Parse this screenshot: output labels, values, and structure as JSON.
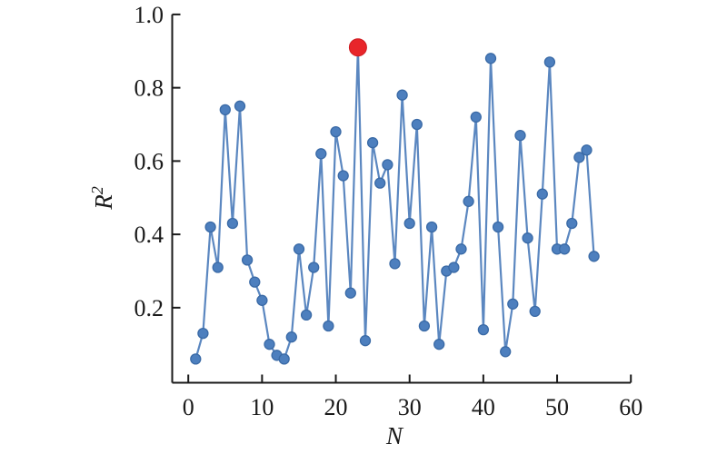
{
  "figure": {
    "background": "#ffffff",
    "description": "Scatter-line plot of R-squared versus N; the maximum point at N=23 is highlighted in red"
  },
  "chart_data": {
    "type": "line",
    "title": "",
    "xlabel": "N",
    "ylabel": "R2",
    "ylabel_base": "R",
    "ylabel_sup": "2",
    "x": [
      1,
      2,
      3,
      4,
      5,
      6,
      7,
      8,
      9,
      10,
      11,
      12,
      13,
      14,
      15,
      16,
      17,
      18,
      19,
      20,
      21,
      22,
      23,
      24,
      25,
      26,
      27,
      28,
      29,
      30,
      31,
      32,
      33,
      34,
      35,
      36,
      37,
      38,
      39,
      40,
      41,
      42,
      43,
      44,
      45,
      46,
      47,
      48,
      49,
      50,
      51,
      52,
      53,
      54,
      55
    ],
    "y": [
      0.06,
      0.13,
      0.42,
      0.31,
      0.74,
      0.43,
      0.75,
      0.33,
      0.27,
      0.22,
      0.1,
      0.07,
      0.06,
      0.12,
      0.36,
      0.18,
      0.31,
      0.62,
      0.15,
      0.68,
      0.56,
      0.24,
      0.91,
      0.11,
      0.65,
      0.54,
      0.59,
      0.32,
      0.78,
      0.43,
      0.7,
      0.15,
      0.42,
      0.1,
      0.3,
      0.31,
      0.36,
      0.49,
      0.72,
      0.14,
      0.88,
      0.42,
      0.08,
      0.21,
      0.67,
      0.39,
      0.19,
      0.51,
      0.87,
      0.36,
      0.36,
      0.43,
      0.61,
      0.63,
      0.34
    ],
    "highlight_point": {
      "x": 23,
      "y": 0.91,
      "meaning": "maximum R2 value",
      "color": "#e8252a"
    },
    "x_tick_labels": [
      "0",
      "10",
      "20",
      "30",
      "40",
      "50",
      "60"
    ],
    "x_ticks": [
      0,
      10,
      20,
      30,
      40,
      50,
      60
    ],
    "y_tick_labels": [
      "0.2",
      "0.4",
      "0.6",
      "0.8",
      "1.0"
    ],
    "y_ticks": [
      0.2,
      0.4,
      0.6,
      0.8,
      1.0
    ],
    "xlim": [
      -2.2,
      60
    ],
    "ylim": [
      0,
      1.0
    ],
    "grid": false,
    "legend": null,
    "colors": {
      "line": "#5b87c0",
      "marker_fill": "#4d7fbe",
      "marker_edge": "#3a6aa6",
      "highlight": "#e8252a",
      "highlight_edge": "#ce1a20",
      "axis": "#1a1a1a"
    }
  }
}
